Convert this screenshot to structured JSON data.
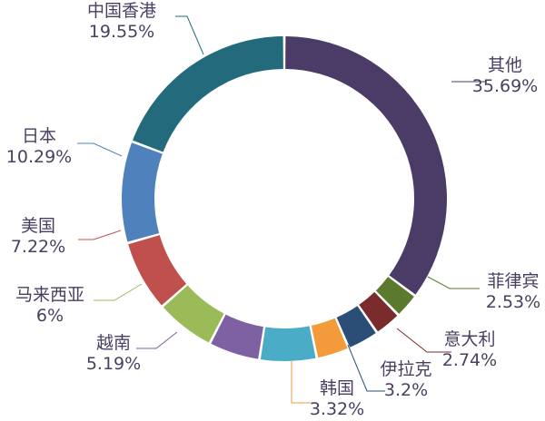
{
  "chart_data": {
    "type": "pie",
    "variant": "donut",
    "legend": "none",
    "label_format": "{name}\n{percent}",
    "slices": [
      {
        "name": "其他",
        "percent": "35.69%",
        "value": 35.69,
        "color": "#4b3b67"
      },
      {
        "name": "菲律宾",
        "percent": "2.53%",
        "value": 2.53,
        "color": "#5b7a2e"
      },
      {
        "name": "意大利",
        "percent": "2.74%",
        "value": 2.74,
        "color": "#7a2c2c"
      },
      {
        "name": "伊拉克",
        "percent": "3.2%",
        "value": 3.2,
        "color": "#2a4e75"
      },
      {
        "name": "韩国",
        "percent": "3.32%",
        "value": 3.32,
        "color": "#f39a3a"
      },
      {
        "name": "",
        "percent": "",
        "value": 5.75,
        "color": "#4aacc6"
      },
      {
        "name": "越南",
        "percent": "5.19%",
        "value": 5.19,
        "color": "#7d61a3"
      },
      {
        "name": "马来西亚",
        "percent": "6%",
        "value": 6.0,
        "color": "#9bbb59"
      },
      {
        "name": "美国",
        "percent": "7.22%",
        "value": 7.22,
        "color": "#c0504d"
      },
      {
        "name": "日本",
        "percent": "10.29%",
        "value": 10.29,
        "color": "#4f81bd"
      },
      {
        "name": "中国香港",
        "percent": "19.55%",
        "value": 19.55,
        "color": "#236b7c"
      }
    ]
  }
}
